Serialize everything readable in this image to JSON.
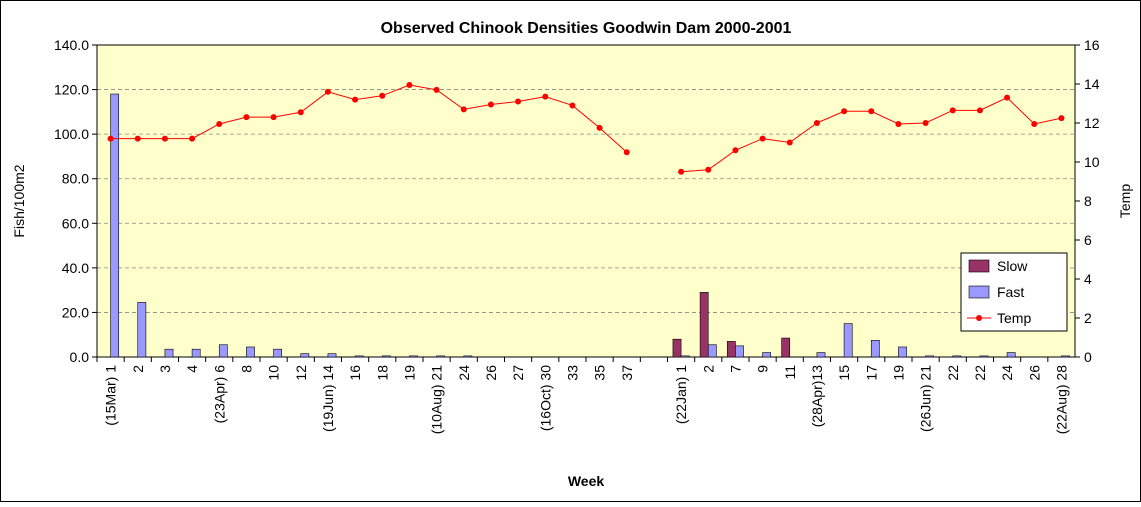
{
  "chart_data": {
    "type": "bar",
    "title": "Observed Chinook Densities Goodwin Dam 2000-2001",
    "x_label": "Week",
    "y_label": "Fish/100m2",
    "y2_label": "Temp",
    "categories": [
      "(15Mar) 1",
      "2",
      "3",
      "4",
      "(23Apr) 6",
      "8",
      "10",
      "12",
      "(19Jun) 14",
      "16",
      "18",
      "19",
      "(10Aug) 21",
      "24",
      "26",
      "27",
      "(16Oct) 30",
      "33",
      "35",
      "37",
      null,
      "(22Jan) 1",
      "2",
      "7",
      "9",
      "11",
      "(28Apr)13",
      "15",
      "17",
      "19",
      "(26Jun) 21",
      "22",
      "22",
      "24",
      "26",
      "(22Aug) 28"
    ],
    "series": [
      {
        "name": "Slow",
        "type": "bar",
        "color": "#993366",
        "values": [
          0,
          0,
          0,
          0,
          0,
          0,
          0,
          0,
          0,
          0,
          0,
          0,
          0,
          0,
          0,
          0,
          0,
          0,
          0,
          0,
          null,
          8,
          29,
          7,
          0,
          8.5,
          0,
          0,
          0,
          0,
          0,
          0,
          0,
          0,
          0,
          0
        ]
      },
      {
        "name": "Fast",
        "type": "bar",
        "color": "#9999ff",
        "values": [
          118,
          24.5,
          3.5,
          3.5,
          5.5,
          4.5,
          3.5,
          1.5,
          1.5,
          0.5,
          0.5,
          0.5,
          0.5,
          0.5,
          0,
          0,
          0,
          0,
          0,
          0,
          null,
          0.5,
          5.5,
          5,
          2,
          0,
          2,
          15,
          7.5,
          4.5,
          0.5,
          0.5,
          0.5,
          2,
          0,
          0.5
        ]
      },
      {
        "name": "Temp",
        "type": "line",
        "axis": "y2",
        "color": "#ff0000",
        "values": [
          11.2,
          11.2,
          11.2,
          11.2,
          11.95,
          12.3,
          12.3,
          12.55,
          13.6,
          13.2,
          13.4,
          13.95,
          13.7,
          12.7,
          12.95,
          13.1,
          13.35,
          12.9,
          11.75,
          10.5,
          null,
          9.5,
          9.6,
          10.6,
          11.2,
          11.0,
          12.0,
          12.6,
          12.6,
          11.95,
          12.0,
          12.65,
          12.65,
          13.3,
          11.95,
          12.25
        ]
      }
    ],
    "ylim": [
      0,
      140
    ],
    "yticks": [
      {
        "value": 0,
        "label": "0.0"
      },
      {
        "value": 20,
        "label": "20.0"
      },
      {
        "value": 40,
        "label": "40.0"
      },
      {
        "value": 60,
        "label": "60.0"
      },
      {
        "value": 80,
        "label": "80.0"
      },
      {
        "value": 100,
        "label": "100.0"
      },
      {
        "value": 120,
        "label": "120.0"
      },
      {
        "value": 140,
        "label": "140.0"
      }
    ],
    "y2lim": [
      0,
      16
    ],
    "y2ticks": [
      0,
      2,
      4,
      6,
      8,
      10,
      12,
      14,
      16
    ],
    "grid": true,
    "legend": "lower-right",
    "background": "#ffffcc"
  }
}
